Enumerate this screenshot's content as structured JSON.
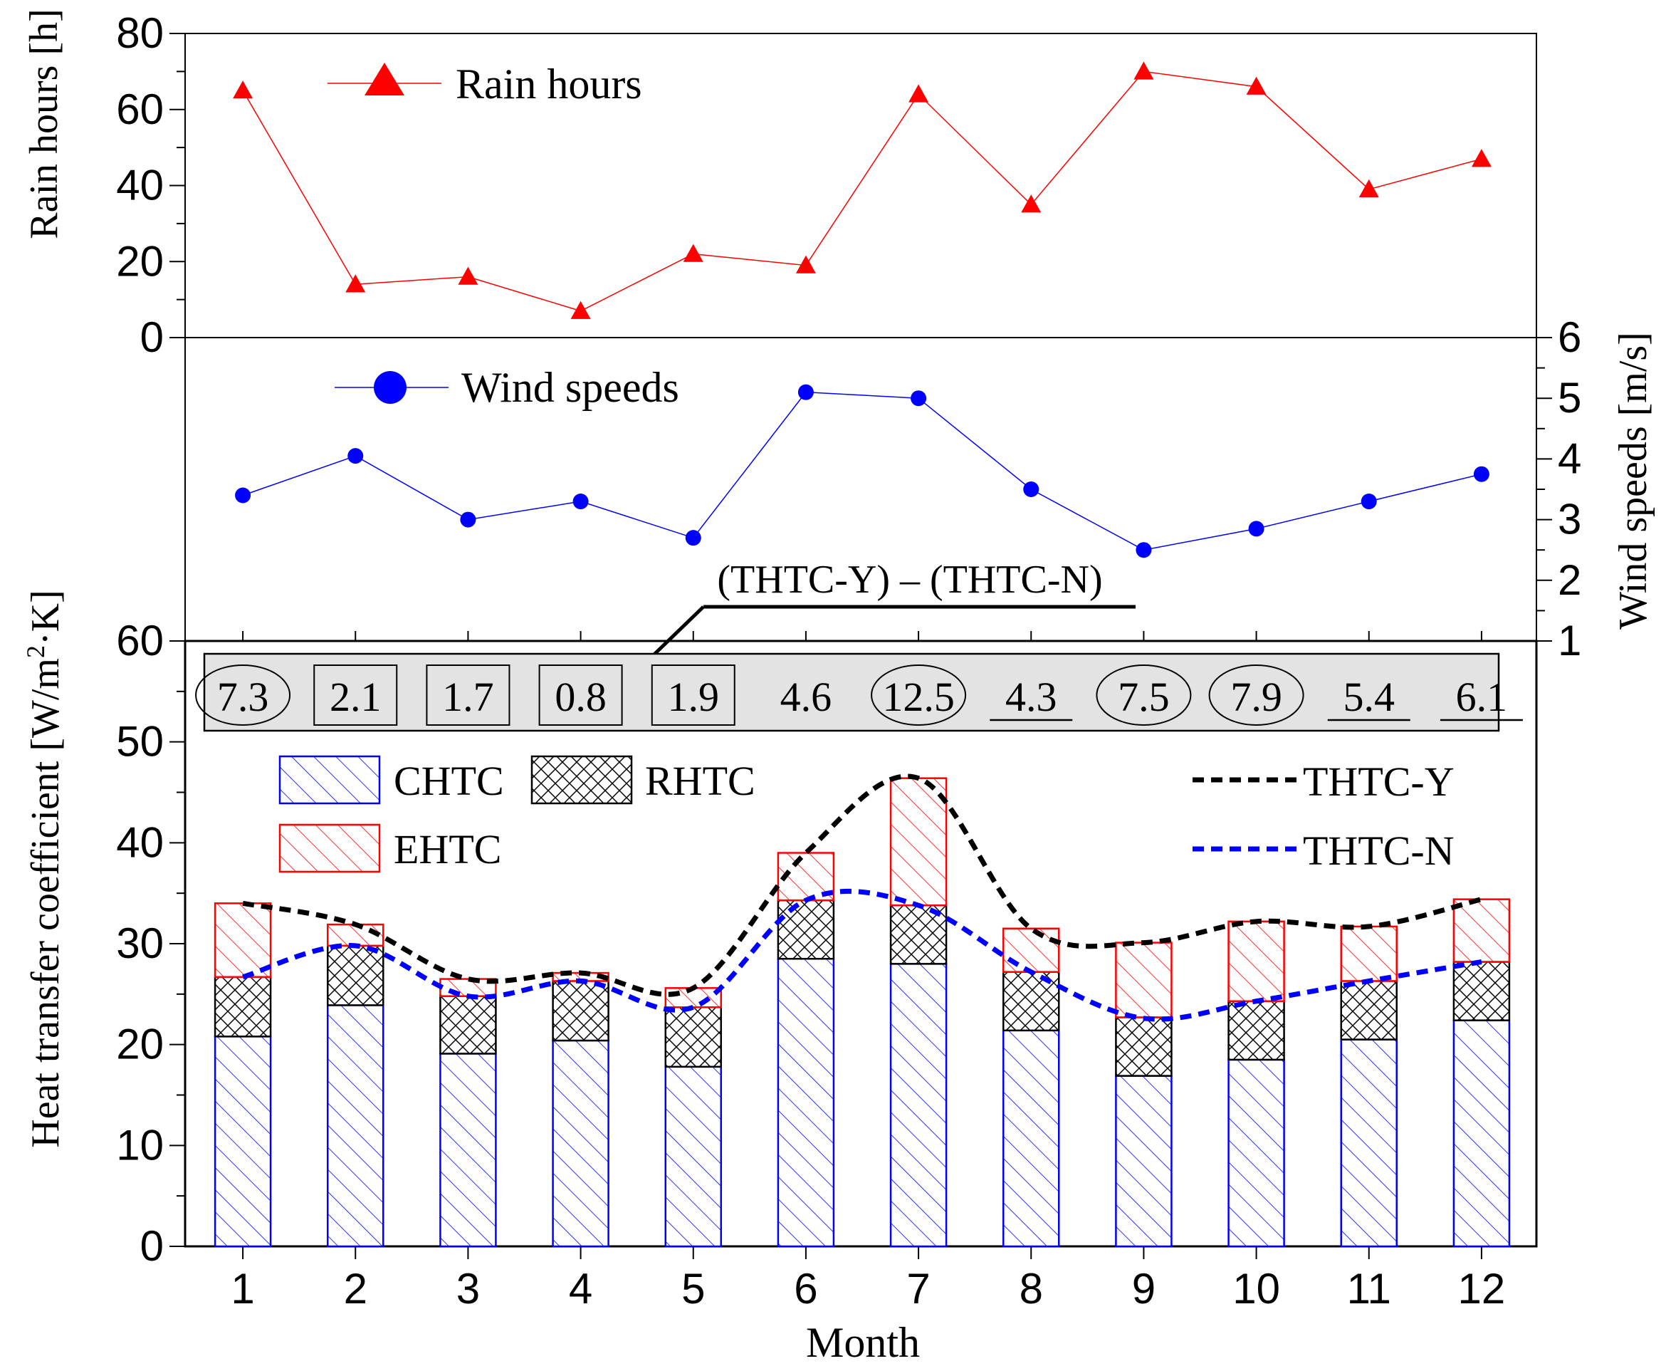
{
  "chart_data": {
    "type": "composite",
    "x_label": "Month",
    "months": [
      "1",
      "2",
      "3",
      "4",
      "5",
      "6",
      "7",
      "8",
      "9",
      "10",
      "11",
      "12"
    ],
    "panels": [
      {
        "id": "rain",
        "type": "line",
        "y_label": "Rain hours [h]",
        "y_axis_side": "left",
        "ylim": [
          0,
          80
        ],
        "y_ticks": [
          "0",
          "20",
          "40",
          "60",
          "80"
        ],
        "series": [
          {
            "name": "Rain hours",
            "color": "#ff0000",
            "marker": "triangle",
            "values": [
              65,
              14,
              16,
              7,
              22,
              19,
              64,
              35,
              70,
              66,
              39,
              47
            ]
          }
        ],
        "legend_position": "top-left"
      },
      {
        "id": "wind",
        "type": "line",
        "y_label": "Wind speeds [m/s]",
        "y_axis_side": "right",
        "ylim": [
          1,
          6
        ],
        "y_ticks": [
          "1",
          "2",
          "3",
          "4",
          "5",
          "6"
        ],
        "series": [
          {
            "name": "Wind speeds",
            "color": "#0000ff",
            "marker": "circle",
            "values": [
              3.4,
              4.05,
              3.0,
              3.3,
              2.7,
              5.1,
              5.0,
              3.5,
              2.5,
              2.85,
              3.3,
              3.75
            ]
          }
        ],
        "legend_position": "top-left"
      },
      {
        "id": "htc",
        "type": "stacked-bar-with-lines",
        "y_label_main": "Heat transfer coefficient [W/m",
        "y_label_sup": "2",
        "y_label_end": "·K]",
        "y_axis_side": "left",
        "ylim": [
          0,
          60
        ],
        "y_ticks": [
          "0",
          "10",
          "20",
          "30",
          "40",
          "50",
          "60"
        ],
        "stacks": [
          {
            "name": "CHTC",
            "color": "#0000ff",
            "pattern": "hatch",
            "values": [
              20.8,
              23.9,
              19.1,
              20.4,
              17.8,
              28.5,
              28.0,
              21.4,
              16.9,
              18.5,
              20.5,
              22.4
            ]
          },
          {
            "name": "RHTC",
            "color": "#000000",
            "pattern": "crosshatch",
            "values": [
              5.9,
              5.9,
              5.7,
              5.9,
              5.9,
              5.8,
              5.8,
              5.8,
              5.8,
              5.8,
              5.8,
              5.8
            ]
          },
          {
            "name": "EHTC",
            "color": "#ff0000",
            "pattern": "hatch",
            "values": [
              7.3,
              2.1,
              1.7,
              0.8,
              1.9,
              4.7,
              12.6,
              4.3,
              7.4,
              7.9,
              5.4,
              6.2
            ]
          }
        ],
        "lines": [
          {
            "name": "THTC-Y",
            "color": "#000000",
            "dash": "dashed",
            "values": [
              34.0,
              31.9,
              26.5,
              27.1,
              25.6,
              39.0,
              46.4,
              31.5,
              30.1,
              32.2,
              31.7,
              34.4
            ]
          },
          {
            "name": "THTC-N",
            "color": "#0000ff",
            "dash": "dashed",
            "values": [
              26.7,
              29.8,
              24.8,
              26.3,
              23.7,
              34.3,
              33.8,
              27.2,
              22.6,
              24.3,
              26.3,
              28.2
            ]
          }
        ],
        "difference_row": {
          "label": "(THTC-Y) – (THTC-N)",
          "values": [
            "7.3",
            "2.1",
            "1.7",
            "0.8",
            "1.9",
            "4.6",
            "12.5",
            "4.3",
            "7.5",
            "7.9",
            "5.4",
            "6.1"
          ],
          "marks": [
            "ellipse",
            "box",
            "box",
            "box",
            "box",
            "none",
            "ellipse",
            "underline",
            "ellipse",
            "ellipse",
            "underline",
            "underline"
          ]
        }
      }
    ]
  }
}
